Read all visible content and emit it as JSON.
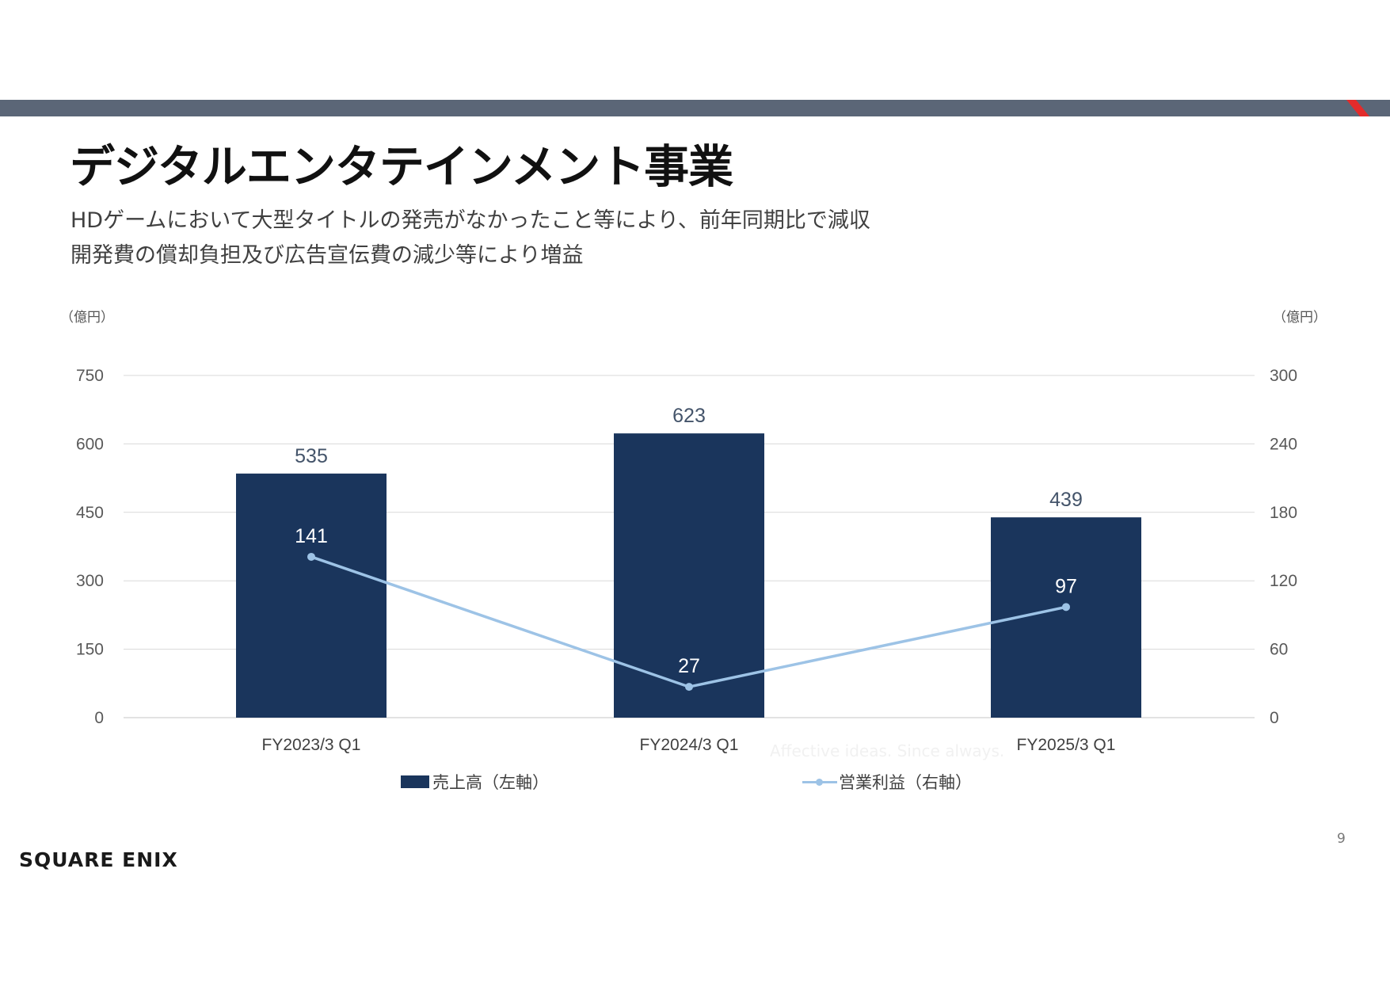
{
  "header": {
    "title": "デジタルエンタテインメント事業",
    "subtitle_lines": [
      "HDゲームにおいて大型タイトルの発売がなかったこと等により、前年同期比で減収",
      "開発費の償却負担及び広告宣伝費の減少等により増益"
    ]
  },
  "colors": {
    "bar": "#1a355c",
    "line": "#9dc3e6",
    "top_bar": "#5b6677",
    "accent": "#e32b2b"
  },
  "chart_data": {
    "type": "bar",
    "categories": [
      "FY2023/3 Q1",
      "FY2024/3 Q1",
      "FY2025/3 Q1"
    ],
    "series": [
      {
        "name": "売上高（左軸）",
        "type": "bar",
        "axis": "left",
        "values": [
          535,
          623,
          439
        ]
      },
      {
        "name": "営業利益（右軸）",
        "type": "line",
        "axis": "right",
        "values": [
          141,
          27,
          97
        ]
      }
    ],
    "left_axis": {
      "unit": "（億円）",
      "ylim": [
        0,
        750
      ],
      "ticks": [
        0,
        150,
        300,
        450,
        600,
        750
      ]
    },
    "right_axis": {
      "unit": "（億円）",
      "ylim": [
        0,
        300
      ],
      "ticks": [
        0,
        60,
        120,
        180,
        240,
        300
      ]
    },
    "grid": true,
    "legend_position": "bottom"
  },
  "watermark": "Affective ideas. Since always.",
  "footer": {
    "page_number": "9",
    "logo_text": "SQUARE ENIX"
  }
}
